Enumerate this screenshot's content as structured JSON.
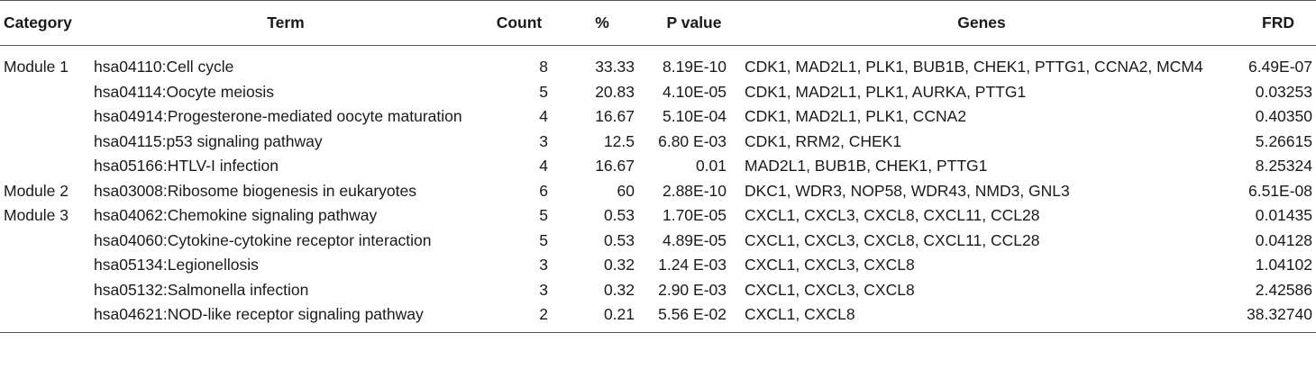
{
  "headers": {
    "category": "Category",
    "term": "Term",
    "count": "Count",
    "pct": "%",
    "pvalue": "P value",
    "genes": "Genes",
    "frd": "FRD"
  },
  "rows": [
    {
      "category": "Module 1",
      "term": "hsa04110:Cell cycle",
      "count": "8",
      "pct": "33.33",
      "pvalue": "8.19E-10",
      "genes": "CDK1, MAD2L1, PLK1, BUB1B, CHEK1, PTTG1, CCNA2, MCM4",
      "frd": "6.49E-07"
    },
    {
      "category": "",
      "term": "hsa04114:Oocyte meiosis",
      "count": "5",
      "pct": "20.83",
      "pvalue": "4.10E-05",
      "genes": "CDK1, MAD2L1, PLK1, AURKA, PTTG1",
      "frd": "0.03253"
    },
    {
      "category": "",
      "term": "hsa04914:Progesterone-mediated oocyte maturation",
      "count": "4",
      "pct": "16.67",
      "pvalue": "5.10E-04",
      "genes": "CDK1, MAD2L1, PLK1, CCNA2",
      "frd": "0.40350"
    },
    {
      "category": "",
      "term": "hsa04115:p53 signaling pathway",
      "count": "3",
      "pct": "12.5",
      "pvalue": "6.80 E-03",
      "genes": "CDK1, RRM2, CHEK1",
      "frd": "5.26615"
    },
    {
      "category": "",
      "term": "hsa05166:HTLV-I infection",
      "count": "4",
      "pct": "16.67",
      "pvalue": "0.01",
      "genes": "MAD2L1, BUB1B, CHEK1, PTTG1",
      "frd": "8.25324"
    },
    {
      "category": "Module 2",
      "term": "hsa03008:Ribosome biogenesis in eukaryotes",
      "count": "6",
      "pct": "60",
      "pvalue": "2.88E-10",
      "genes": "DKC1, WDR3, NOP58, WDR43, NMD3, GNL3",
      "frd": "6.51E-08"
    },
    {
      "category": "Module 3",
      "term": "hsa04062:Chemokine signaling pathway",
      "count": "5",
      "pct": "0.53",
      "pvalue": "1.70E-05",
      "genes": "CXCL1, CXCL3, CXCL8, CXCL11, CCL28",
      "frd": "0.01435"
    },
    {
      "category": "",
      "term": "hsa04060:Cytokine-cytokine receptor interaction",
      "count": "5",
      "pct": "0.53",
      "pvalue": "4.89E-05",
      "genes": "CXCL1, CXCL3, CXCL8, CXCL11, CCL28",
      "frd": "0.04128"
    },
    {
      "category": "",
      "term": "hsa05134:Legionellosis",
      "count": "3",
      "pct": "0.32",
      "pvalue": "1.24 E-03",
      "genes": "CXCL1, CXCL3, CXCL8",
      "frd": "1.04102"
    },
    {
      "category": "",
      "term": "hsa05132:Salmonella infection",
      "count": "3",
      "pct": "0.32",
      "pvalue": "2.90 E-03",
      "genes": "CXCL1, CXCL3, CXCL8",
      "frd": "2.42586"
    },
    {
      "category": "",
      "term": "hsa04621:NOD-like receptor signaling pathway",
      "count": "2",
      "pct": "0.21",
      "pvalue": "5.56 E-02",
      "genes": "CXCL1, CXCL8",
      "frd": "38.32740"
    }
  ]
}
